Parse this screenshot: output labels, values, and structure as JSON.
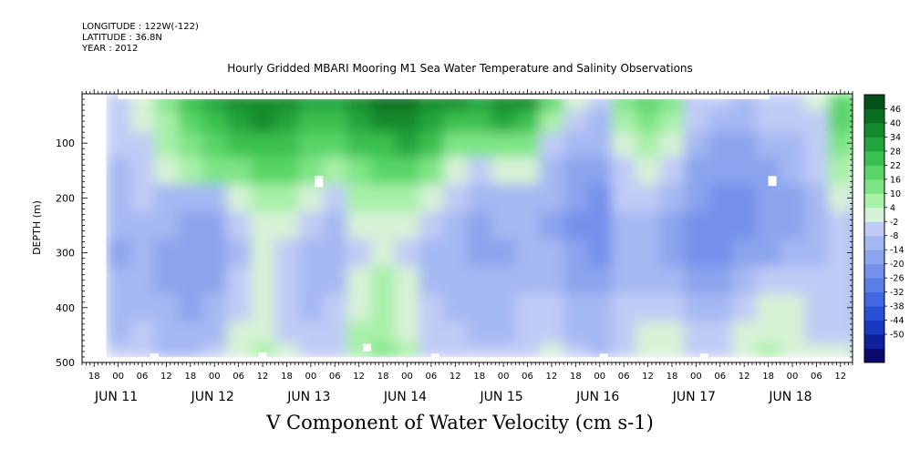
{
  "meta": {
    "longitude": "LONGITUDE : 122W(-122)",
    "latitude": "LATITUDE : 36.8N",
    "year": "YEAR : 2012"
  },
  "chart_data": {
    "type": "heatmap",
    "title": "Hourly Gridded MBARI Mooring M1 Sea Water Temperature and Salinity Observations",
    "xlabel": "V Component of Water Velocity (cm s-1)",
    "ylabel": "DEPTH (m)",
    "xlim_days": [
      "JUN 10 15:00",
      "JUN 18 15:00"
    ],
    "ylim": [
      500,
      10
    ],
    "y_ticks": [
      100,
      200,
      300,
      400,
      500
    ],
    "x_hour_labels": [
      "18",
      "00",
      "06",
      "12",
      "18",
      "00",
      "06",
      "12",
      "18",
      "00",
      "06",
      "12",
      "18",
      "00",
      "06",
      "12",
      "18",
      "00",
      "06",
      "12",
      "18",
      "00",
      "06",
      "12",
      "18",
      "00",
      "06",
      "12",
      "18",
      "00",
      "06",
      "12"
    ],
    "x_day_labels": [
      "JUN 11",
      "JUN 12",
      "JUN 13",
      "JUN 14",
      "JUN 15",
      "JUN 16",
      "JUN 17",
      "JUN 18"
    ],
    "colorbar": {
      "levels": [
        -50,
        -44,
        -38,
        -32,
        -26,
        -20,
        -14,
        -8,
        -2,
        4,
        10,
        16,
        22,
        28,
        34,
        40,
        46
      ],
      "labels": [
        "46",
        "40",
        "34",
        "28",
        "22",
        "16",
        "10",
        "4",
        "-2",
        "-8",
        "-14",
        "-20",
        "-26",
        "-32",
        "-38",
        "-44",
        "-50"
      ],
      "colors_low_to_high": [
        "#0a0a6e",
        "#10209a",
        "#1838c0",
        "#2850d8",
        "#4068e0",
        "#5a7ee6",
        "#7490ea",
        "#8ca4ee",
        "#a4b8f2",
        "#c0ccf6",
        "#d6f2d6",
        "#a8f0a8",
        "#7ee486",
        "#58d468",
        "#3ac050",
        "#24a43c",
        "#148a2c",
        "#0a6e20",
        "#04501a"
      ]
    },
    "depth_field": {
      "note": "V velocity by depth band (rows) over time (columns, every 6 h from JUN 11 00)",
      "depths": [
        20,
        60,
        100,
        150,
        200,
        250,
        300,
        350,
        400,
        450,
        480
      ],
      "times": [
        "JUN 11 00",
        "06",
        "12",
        "18",
        "JUN 12 00",
        "06",
        "12",
        "18",
        "JUN 13 00",
        "06",
        "12",
        "18",
        "JUN 14 00",
        "06",
        "12",
        "18",
        "JUN 15 00",
        "06",
        "12",
        "18",
        "JUN 16 00",
        "06",
        "12",
        "18",
        "JUN 17 00",
        "06",
        "12",
        "18",
        "JUN 18 00",
        "06",
        "12",
        "18"
      ],
      "values": [
        [
          -4,
          2,
          10,
          22,
          30,
          34,
          38,
          36,
          30,
          28,
          34,
          40,
          42,
          38,
          34,
          30,
          36,
          34,
          16,
          -2,
          -6,
          10,
          20,
          12,
          -4,
          -8,
          -10,
          -6,
          -4,
          -2,
          20,
          14
        ],
        [
          -6,
          0,
          8,
          18,
          26,
          30,
          34,
          32,
          26,
          22,
          28,
          34,
          36,
          32,
          26,
          24,
          28,
          22,
          8,
          -8,
          -10,
          6,
          14,
          6,
          -8,
          -12,
          -12,
          -8,
          -8,
          -4,
          16,
          10
        ],
        [
          -8,
          -4,
          4,
          10,
          20,
          24,
          26,
          24,
          18,
          16,
          22,
          26,
          28,
          22,
          14,
          10,
          14,
          10,
          -4,
          -14,
          -14,
          2,
          8,
          0,
          -12,
          -16,
          -16,
          -12,
          -10,
          -6,
          10,
          4
        ],
        [
          -10,
          -6,
          -2,
          4,
          10,
          14,
          18,
          16,
          10,
          8,
          14,
          18,
          18,
          12,
          2,
          -4,
          0,
          -2,
          -10,
          -18,
          -18,
          -4,
          2,
          -6,
          -16,
          -20,
          -20,
          -16,
          -14,
          -8,
          4,
          -2
        ],
        [
          -12,
          -8,
          -10,
          -14,
          -10,
          -2,
          8,
          6,
          0,
          -4,
          4,
          8,
          6,
          0,
          -8,
          -14,
          -10,
          -10,
          -14,
          -20,
          -22,
          -8,
          -6,
          -12,
          -20,
          -24,
          -22,
          -18,
          -16,
          -10,
          -2,
          -6
        ],
        [
          -14,
          -10,
          -14,
          -18,
          -18,
          -8,
          2,
          0,
          -8,
          -10,
          -2,
          2,
          0,
          -6,
          -12,
          -16,
          -14,
          -12,
          -16,
          -22,
          -24,
          -12,
          -12,
          -18,
          -24,
          -26,
          -24,
          -20,
          -18,
          -12,
          -6,
          -10
        ],
        [
          -16,
          -12,
          -16,
          -20,
          -20,
          -10,
          -2,
          -4,
          -10,
          -12,
          -4,
          0,
          -4,
          -10,
          -14,
          -18,
          -16,
          -12,
          -14,
          -20,
          -22,
          -14,
          -14,
          -16,
          -22,
          -24,
          -20,
          -16,
          -14,
          -10,
          -8,
          -12
        ],
        [
          -14,
          -12,
          -16,
          -18,
          -16,
          -8,
          -2,
          -6,
          -12,
          -12,
          -2,
          4,
          -2,
          -10,
          -12,
          -14,
          -14,
          -10,
          -10,
          -16,
          -18,
          -12,
          -10,
          -10,
          -16,
          -18,
          -12,
          -8,
          -6,
          -8,
          -8,
          -12
        ],
        [
          -12,
          -10,
          -14,
          -16,
          -12,
          -4,
          0,
          -6,
          -10,
          -8,
          2,
          6,
          0,
          -8,
          -10,
          -12,
          -12,
          -8,
          -6,
          -12,
          -14,
          -8,
          -6,
          -4,
          -10,
          -12,
          -6,
          -2,
          -2,
          -6,
          -6,
          -10
        ],
        [
          -10,
          -8,
          -12,
          -14,
          -10,
          -2,
          2,
          -4,
          -8,
          -6,
          4,
          8,
          2,
          -6,
          -8,
          -10,
          -10,
          -6,
          -4,
          -10,
          -12,
          -6,
          -2,
          0,
          -6,
          -8,
          -2,
          2,
          0,
          -4,
          -4,
          -8
        ],
        [
          -8,
          -6,
          -10,
          -12,
          -8,
          0,
          4,
          -2,
          -6,
          -4,
          6,
          10,
          4,
          -4,
          -6,
          -8,
          -8,
          -4,
          -2,
          -8,
          -10,
          -4,
          0,
          2,
          -4,
          -6,
          0,
          4,
          2,
          -2,
          -2,
          -6
        ]
      ]
    }
  }
}
